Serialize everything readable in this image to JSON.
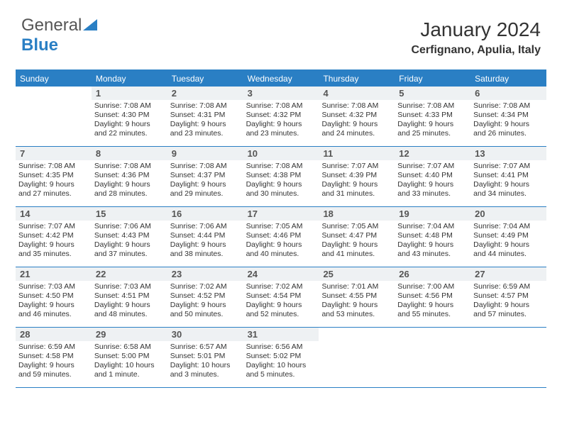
{
  "logo": {
    "text_a": "General",
    "text_b": "Blue"
  },
  "title": "January 2024",
  "subtitle": "Cerfignano, Apulia, Italy",
  "colors": {
    "accent": "#2a7fc4",
    "header_bg": "#2a7fc4",
    "header_fg": "#ffffff",
    "daynum_bg": "#eef1f3",
    "text": "#333333"
  },
  "day_names": [
    "Sunday",
    "Monday",
    "Tuesday",
    "Wednesday",
    "Thursday",
    "Friday",
    "Saturday"
  ],
  "weeks": [
    [
      {
        "n": "",
        "empty": true
      },
      {
        "n": "1",
        "sr": "7:08 AM",
        "ss": "4:30 PM",
        "dl": "9 hours and 22 minutes."
      },
      {
        "n": "2",
        "sr": "7:08 AM",
        "ss": "4:31 PM",
        "dl": "9 hours and 23 minutes."
      },
      {
        "n": "3",
        "sr": "7:08 AM",
        "ss": "4:32 PM",
        "dl": "9 hours and 23 minutes."
      },
      {
        "n": "4",
        "sr": "7:08 AM",
        "ss": "4:32 PM",
        "dl": "9 hours and 24 minutes."
      },
      {
        "n": "5",
        "sr": "7:08 AM",
        "ss": "4:33 PM",
        "dl": "9 hours and 25 minutes."
      },
      {
        "n": "6",
        "sr": "7:08 AM",
        "ss": "4:34 PM",
        "dl": "9 hours and 26 minutes."
      }
    ],
    [
      {
        "n": "7",
        "sr": "7:08 AM",
        "ss": "4:35 PM",
        "dl": "9 hours and 27 minutes."
      },
      {
        "n": "8",
        "sr": "7:08 AM",
        "ss": "4:36 PM",
        "dl": "9 hours and 28 minutes."
      },
      {
        "n": "9",
        "sr": "7:08 AM",
        "ss": "4:37 PM",
        "dl": "9 hours and 29 minutes."
      },
      {
        "n": "10",
        "sr": "7:08 AM",
        "ss": "4:38 PM",
        "dl": "9 hours and 30 minutes."
      },
      {
        "n": "11",
        "sr": "7:07 AM",
        "ss": "4:39 PM",
        "dl": "9 hours and 31 minutes."
      },
      {
        "n": "12",
        "sr": "7:07 AM",
        "ss": "4:40 PM",
        "dl": "9 hours and 33 minutes."
      },
      {
        "n": "13",
        "sr": "7:07 AM",
        "ss": "4:41 PM",
        "dl": "9 hours and 34 minutes."
      }
    ],
    [
      {
        "n": "14",
        "sr": "7:07 AM",
        "ss": "4:42 PM",
        "dl": "9 hours and 35 minutes."
      },
      {
        "n": "15",
        "sr": "7:06 AM",
        "ss": "4:43 PM",
        "dl": "9 hours and 37 minutes."
      },
      {
        "n": "16",
        "sr": "7:06 AM",
        "ss": "4:44 PM",
        "dl": "9 hours and 38 minutes."
      },
      {
        "n": "17",
        "sr": "7:05 AM",
        "ss": "4:46 PM",
        "dl": "9 hours and 40 minutes."
      },
      {
        "n": "18",
        "sr": "7:05 AM",
        "ss": "4:47 PM",
        "dl": "9 hours and 41 minutes."
      },
      {
        "n": "19",
        "sr": "7:04 AM",
        "ss": "4:48 PM",
        "dl": "9 hours and 43 minutes."
      },
      {
        "n": "20",
        "sr": "7:04 AM",
        "ss": "4:49 PM",
        "dl": "9 hours and 44 minutes."
      }
    ],
    [
      {
        "n": "21",
        "sr": "7:03 AM",
        "ss": "4:50 PM",
        "dl": "9 hours and 46 minutes."
      },
      {
        "n": "22",
        "sr": "7:03 AM",
        "ss": "4:51 PM",
        "dl": "9 hours and 48 minutes."
      },
      {
        "n": "23",
        "sr": "7:02 AM",
        "ss": "4:52 PM",
        "dl": "9 hours and 50 minutes."
      },
      {
        "n": "24",
        "sr": "7:02 AM",
        "ss": "4:54 PM",
        "dl": "9 hours and 52 minutes."
      },
      {
        "n": "25",
        "sr": "7:01 AM",
        "ss": "4:55 PM",
        "dl": "9 hours and 53 minutes."
      },
      {
        "n": "26",
        "sr": "7:00 AM",
        "ss": "4:56 PM",
        "dl": "9 hours and 55 minutes."
      },
      {
        "n": "27",
        "sr": "6:59 AM",
        "ss": "4:57 PM",
        "dl": "9 hours and 57 minutes."
      }
    ],
    [
      {
        "n": "28",
        "sr": "6:59 AM",
        "ss": "4:58 PM",
        "dl": "9 hours and 59 minutes."
      },
      {
        "n": "29",
        "sr": "6:58 AM",
        "ss": "5:00 PM",
        "dl": "10 hours and 1 minute."
      },
      {
        "n": "30",
        "sr": "6:57 AM",
        "ss": "5:01 PM",
        "dl": "10 hours and 3 minutes."
      },
      {
        "n": "31",
        "sr": "6:56 AM",
        "ss": "5:02 PM",
        "dl": "10 hours and 5 minutes."
      },
      {
        "n": "",
        "empty": true
      },
      {
        "n": "",
        "empty": true
      },
      {
        "n": "",
        "empty": true
      }
    ]
  ],
  "labels": {
    "sunrise": "Sunrise: ",
    "sunset": "Sunset: ",
    "daylight": "Daylight: "
  }
}
